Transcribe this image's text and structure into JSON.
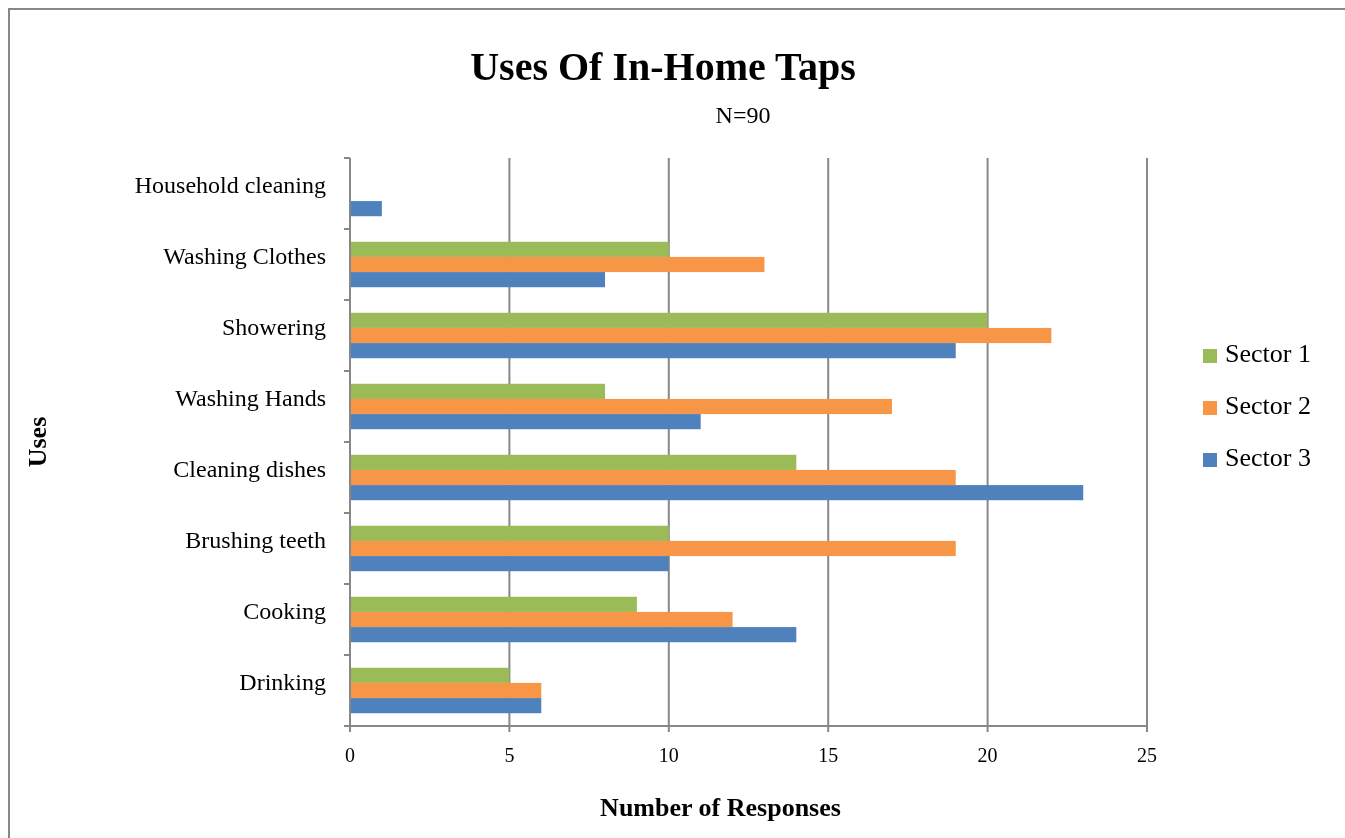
{
  "chart_data": {
    "type": "bar",
    "orientation": "horizontal",
    "title": "Uses Of In-Home Taps",
    "subtitle": "N=90",
    "xlabel": "Number of Responses",
    "ylabel": "Uses",
    "categories": [
      "Household cleaning",
      "Washing Clothes",
      "Showering",
      "Washing Hands",
      "Cleaning dishes",
      "Brushing teeth",
      "Cooking",
      "Drinking"
    ],
    "series": [
      {
        "name": "Sector 1",
        "color": "#9bbb59",
        "values": [
          null,
          10,
          20,
          8,
          14,
          10,
          9,
          5
        ]
      },
      {
        "name": "Sector 2",
        "color": "#f79646",
        "values": [
          null,
          13,
          22,
          17,
          19,
          19,
          12,
          6
        ]
      },
      {
        "name": "Sector 3",
        "color": "#4f81bd",
        "values": [
          1,
          8,
          19,
          11,
          23,
          10,
          14,
          6
        ]
      }
    ],
    "xlim": [
      0,
      25
    ],
    "xticks": [
      0,
      5,
      10,
      15,
      20,
      25
    ],
    "grid": "x",
    "legend": "right"
  }
}
